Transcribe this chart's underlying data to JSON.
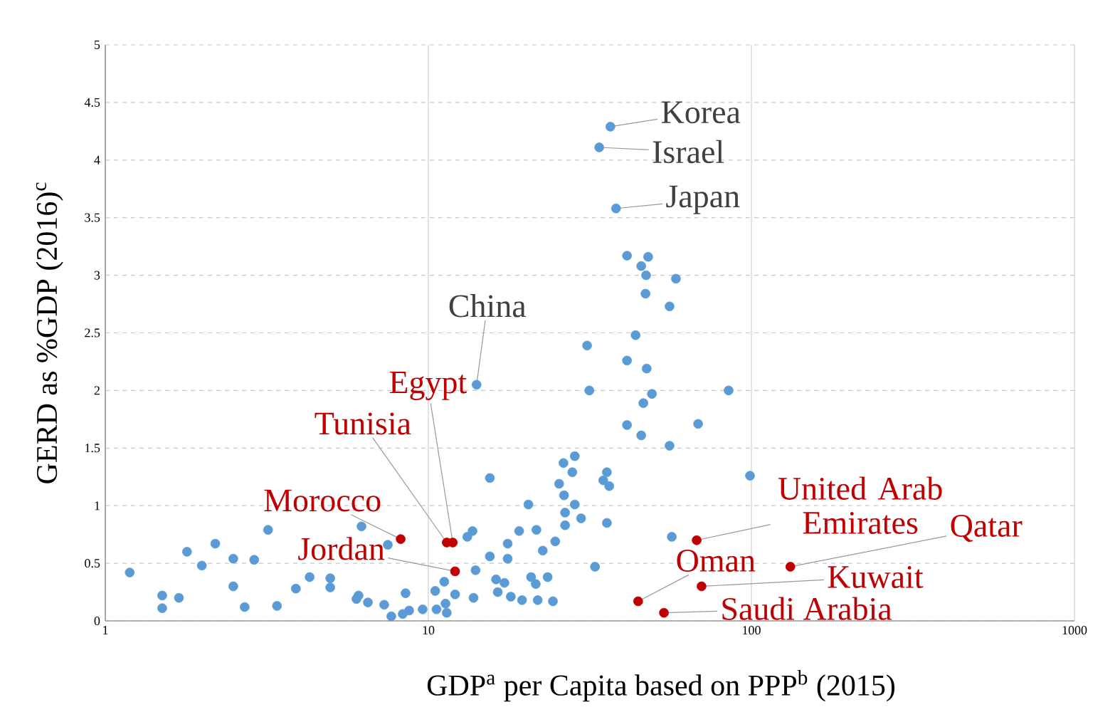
{
  "chart_data": {
    "type": "scatter",
    "xlabel": "GDP$^{a}$ per Capita based on PPP$^{b}$ (2015)",
    "ylabel": "GERD as %GDP (2016)$^{c}$",
    "log": "x",
    "grid": true,
    "xlim": [
      1,
      1000
    ],
    "xticks": [
      1,
      10,
      100,
      1000
    ],
    "ylim": [
      0,
      5
    ],
    "yticks": [
      0,
      0.5,
      1,
      1.5,
      2,
      2.5,
      3,
      3.5,
      4,
      4.5,
      5
    ],
    "series": [
      {
        "color": "#5b9bd5",
        "x": [
          1.19,
          1.5,
          1.5,
          1.69,
          1.79,
          1.99,
          2.19,
          2.49,
          2.49,
          2.7,
          2.89,
          3.19,
          3.4,
          3.89,
          4.29,
          4.97,
          4.97,
          5.99,
          6.08,
          6.21,
          6.5,
          7.3,
          7.49,
          7.68,
          8.33,
          8.5,
          8.72,
          9.6,
          10.5,
          10.6,
          11.2,
          11.3,
          11.4,
          12.1,
          13.2,
          13.7,
          13.8,
          14.0,
          14.1,
          15.5,
          15.5,
          16.2,
          16.4,
          17.2,
          17.6,
          17.6,
          18.0,
          19.1,
          19.5,
          20.4,
          20.8,
          21.5,
          21.6,
          21.8,
          22.6,
          23.4,
          24.3,
          24.7,
          25.4,
          26.2,
          26.3,
          26.5,
          26.5,
          27.9,
          28.4,
          28.4,
          29.7,
          31.0,
          31.5,
          32.8,
          33.8,
          35.7,
          35.7,
          34.8,
          36.3,
          36.6,
          38.1,
          41.2,
          41.2,
          41.2,
          43.8,
          45.6,
          45.6,
          46.3,
          47.0,
          47.2,
          47.4,
          47.9,
          49.2,
          56.7,
          55.8,
          55.8,
          58.4,
          68.4,
          85.0,
          99.0
        ],
        "values": [
          0.42,
          0.22,
          0.11,
          0.2,
          0.6,
          0.48,
          0.67,
          0.54,
          0.3,
          0.12,
          0.53,
          0.79,
          0.13,
          0.28,
          0.38,
          0.37,
          0.29,
          0.19,
          0.22,
          0.82,
          0.16,
          0.14,
          0.66,
          0.04,
          0.06,
          0.24,
          0.09,
          0.1,
          0.26,
          0.1,
          0.34,
          0.15,
          0.07,
          0.23,
          0.73,
          0.78,
          0.2,
          0.44,
          2.05,
          1.24,
          0.56,
          0.36,
          0.25,
          0.33,
          0.67,
          0.54,
          0.21,
          0.78,
          0.18,
          1.01,
          0.38,
          0.32,
          0.79,
          0.18,
          0.61,
          0.38,
          0.17,
          0.69,
          1.19,
          1.37,
          1.09,
          0.94,
          0.83,
          1.29,
          1.43,
          1.01,
          0.89,
          2.39,
          2.0,
          0.47,
          4.11,
          0.85,
          1.29,
          1.22,
          1.17,
          4.29,
          3.58,
          3.17,
          1.7,
          2.26,
          2.48,
          3.08,
          1.61,
          1.89,
          2.84,
          3.0,
          2.19,
          3.16,
          1.97,
          0.73,
          2.73,
          1.52,
          2.97,
          1.71,
          2.0,
          1.26
        ]
      },
      {
        "color": "#c00000",
        "x": [
          8.21,
          11.4,
          11.9,
          12.1,
          44.6,
          53.6,
          67.7,
          70.1,
          132
        ],
        "values": [
          0.71,
          0.68,
          0.68,
          0.43,
          0.17,
          0.07,
          0.7,
          0.3,
          0.47
        ]
      }
    ],
    "annotations": [
      {
        "text": "Korea",
        "x": 36.6,
        "y": 4.29
      },
      {
        "text": "Israel",
        "x": 33.8,
        "y": 4.11
      },
      {
        "text": "Japan",
        "x": 38.1,
        "y": 3.58
      },
      {
        "text": "China",
        "x": 14.1,
        "y": 2.05
      },
      {
        "text": "Egypt",
        "x": 11.9,
        "y": 0.68
      },
      {
        "text": "Tunisia",
        "x": 11.4,
        "y": 0.68
      },
      {
        "text": "Morocco",
        "x": 8.21,
        "y": 0.71
      },
      {
        "text": "Jordan",
        "x": 12.1,
        "y": 0.43
      },
      {
        "text": "United Arab Emirates",
        "x": 67.7,
        "y": 0.7
      },
      {
        "text": "Qatar",
        "x": 132,
        "y": 0.47
      },
      {
        "text": "Oman",
        "x": 44.6,
        "y": 0.17
      },
      {
        "text": "Kuwait",
        "x": 70.1,
        "y": 0.3
      },
      {
        "text": "Saudi Arabia",
        "x": 53.6,
        "y": 0.07
      }
    ]
  }
}
